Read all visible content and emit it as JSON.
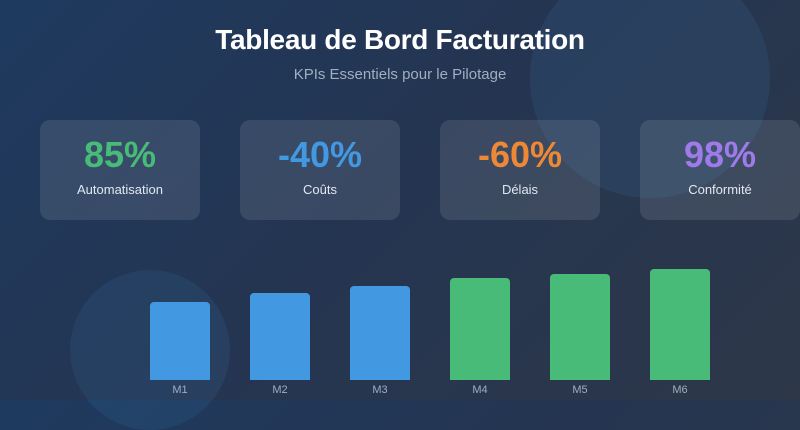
{
  "header": {
    "title": "Tableau de Bord Facturation",
    "subtitle": "KPIs Essentiels pour le Pilotage"
  },
  "kpis": [
    {
      "value": "85%",
      "label": "Automatisation",
      "color": "#48bb78"
    },
    {
      "value": "-40%",
      "label": "Coûts",
      "color": "#4299e1"
    },
    {
      "value": "-60%",
      "label": "Délais",
      "color": "#ed8936"
    },
    {
      "value": "98%",
      "label": "Conformité",
      "color": "#9f7aea"
    }
  ],
  "colors": {
    "blue": "#4299e1",
    "green": "#48bb78",
    "orange": "#ed8936",
    "purple": "#9f7aea",
    "background_start": "#1e3a5f",
    "background_end": "#2d3748"
  },
  "chart_data": {
    "type": "bar",
    "title": "",
    "xlabel": "",
    "ylabel": "",
    "categories": [
      "M1",
      "M2",
      "M3",
      "M4",
      "M5",
      "M6"
    ],
    "values": [
      78,
      87,
      94,
      102,
      106,
      111
    ],
    "bar_colors": [
      "#4299e1",
      "#4299e1",
      "#4299e1",
      "#48bb78",
      "#48bb78",
      "#48bb78"
    ],
    "units": "relative pixel height (no y-axis shown)",
    "grid": false,
    "legend": null
  }
}
